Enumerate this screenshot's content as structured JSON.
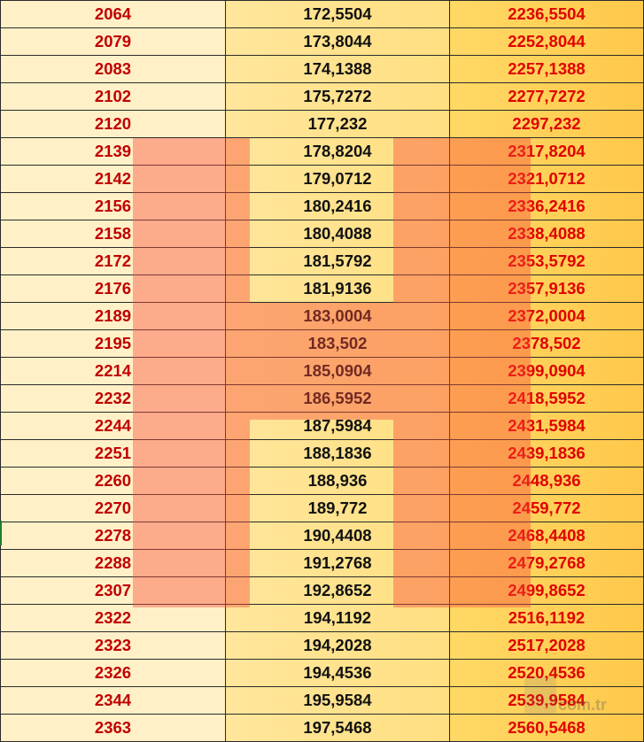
{
  "table": {
    "rows": [
      [
        "2064",
        "172,5504",
        "2236,5504"
      ],
      [
        "2079",
        "173,8044",
        "2252,8044"
      ],
      [
        "2083",
        "174,1388",
        "2257,1388"
      ],
      [
        "2102",
        "175,7272",
        "2277,7272"
      ],
      [
        "2120",
        "177,232",
        "2297,232"
      ],
      [
        "2139",
        "178,8204",
        "2317,8204"
      ],
      [
        "2142",
        "179,0712",
        "2321,0712"
      ],
      [
        "2156",
        "180,2416",
        "2336,2416"
      ],
      [
        "2158",
        "180,4088",
        "2338,4088"
      ],
      [
        "2172",
        "181,5792",
        "2353,5792"
      ],
      [
        "2176",
        "181,9136",
        "2357,9136"
      ],
      [
        "2189",
        "183,0004",
        "2372,0004"
      ],
      [
        "2195",
        "183,502",
        "2378,502"
      ],
      [
        "2214",
        "185,0904",
        "2399,0904"
      ],
      [
        "2232",
        "186,5952",
        "2418,5952"
      ],
      [
        "2244",
        "187,5984",
        "2431,5984"
      ],
      [
        "2251",
        "188,1836",
        "2439,1836"
      ],
      [
        "2260",
        "188,936",
        "2448,936"
      ],
      [
        "2270",
        "189,772",
        "2459,772"
      ],
      [
        "2278",
        "190,4408",
        "2468,4408"
      ],
      [
        "2288",
        "191,2768",
        "2479,2768"
      ],
      [
        "2307",
        "192,8652",
        "2499,8652"
      ],
      [
        "2322",
        "194,1192",
        "2516,1192"
      ],
      [
        "2323",
        "194,2028",
        "2517,2028"
      ],
      [
        "2326",
        "194,4536",
        "2520,4536"
      ],
      [
        "2344",
        "195,9584",
        "2539,9584"
      ],
      [
        "2363",
        "197,5468",
        "2560,5468"
      ]
    ]
  },
  "watermark": {
    "logo_letter": "H",
    "site_text": "com.tr"
  },
  "colors": {
    "col1_text": "#c00000",
    "col2_text": "#111111",
    "col3_text": "#e00000",
    "col1_bg": "#fff0c7",
    "col2_bg": "#ffe69c",
    "col3_bg": "#ffd966",
    "watermark": "#f84c3a"
  }
}
